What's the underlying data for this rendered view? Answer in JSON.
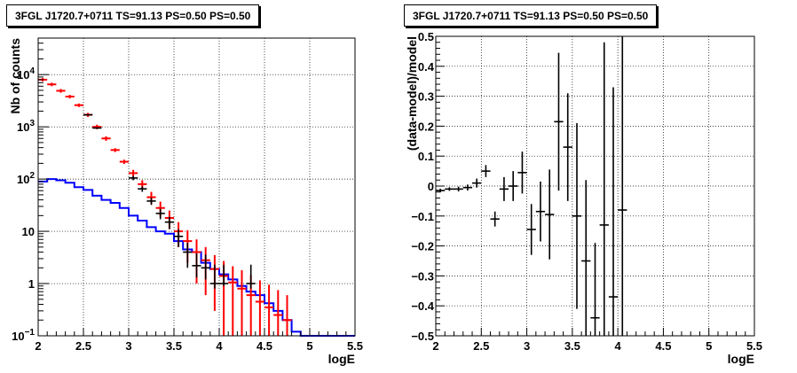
{
  "chart_data": [
    {
      "type": "step-histogram-with-error-bars",
      "title": "3FGL J1720.7+0711 TS=91.13 PS=0.50 PS=0.50",
      "xlabel": "logE",
      "ylabel": "Nb of counts",
      "xlim": [
        2,
        5.5
      ],
      "ylim": [
        0.1,
        50000
      ],
      "yscale": "log",
      "grid": true,
      "x_ticks": [
        "2",
        "2.5",
        "3",
        "3.5",
        "4",
        "4.5",
        "5",
        "5.5"
      ],
      "y_ticks": [
        {
          "value": 0.1,
          "base": "10",
          "exp": "−1"
        },
        {
          "value": 1,
          "base": "1",
          "exp": ""
        },
        {
          "value": 10,
          "base": "10",
          "exp": ""
        },
        {
          "value": 100,
          "base": "10",
          "exp": "2"
        },
        {
          "value": 1000,
          "base": "10",
          "exp": "3"
        },
        {
          "value": 10000,
          "base": "10",
          "exp": "4"
        }
      ],
      "colors": {
        "data": "#000000",
        "model": "#ff0000",
        "source": "#0000ff"
      },
      "bin_width": 0.1,
      "series": [
        {
          "role": "source",
          "x": [
            2.0,
            2.1,
            2.2,
            2.3,
            2.4,
            2.5,
            2.6,
            2.7,
            2.8,
            2.9,
            3.0,
            3.1,
            3.2,
            3.3,
            3.4,
            3.5,
            3.6,
            3.7,
            3.8,
            3.9,
            4.0,
            4.1,
            4.2,
            4.3,
            4.4,
            4.5,
            4.6,
            4.7,
            4.8,
            4.9,
            5.0,
            5.1,
            5.2,
            5.3,
            5.4
          ],
          "values": [
            90,
            100,
            95,
            85,
            70,
            62,
            48,
            40,
            35,
            28,
            20,
            16,
            12,
            10,
            9,
            6.5,
            4.5,
            4,
            2.5,
            1.9,
            1.5,
            1.2,
            0.9,
            0.7,
            0.6,
            0.42,
            0.3,
            0.2,
            0.12,
            0.1,
            0.1,
            0.1,
            0.1,
            0.1,
            0.1
          ]
        },
        {
          "role": "model",
          "x": [
            2.05,
            2.15,
            2.25,
            2.35,
            2.45,
            2.55,
            2.65,
            2.75,
            2.85,
            2.95,
            3.05,
            3.15,
            3.25,
            3.35,
            3.45,
            3.55,
            3.65,
            3.75,
            3.85,
            3.95,
            4.05,
            4.15,
            4.25,
            4.35,
            4.45,
            4.55,
            4.65,
            4.75
          ],
          "values": [
            8000,
            6500,
            4900,
            3800,
            2600,
            1700,
            1000,
            600,
            360,
            215,
            130,
            80,
            45,
            28,
            18,
            10,
            6.5,
            4,
            2.8,
            1.9,
            1.4,
            1.05,
            0.8,
            0.6,
            0.45,
            0.35,
            0.25,
            0.2
          ],
          "error": [
            600,
            500,
            400,
            300,
            200,
            150,
            100,
            60,
            30,
            20,
            20,
            15,
            12,
            9,
            7,
            5,
            4,
            3,
            2.2,
            1.6,
            1.3,
            1.1,
            1.0,
            0.85,
            0.7,
            0.6,
            0.5,
            0.4
          ]
        },
        {
          "role": "data",
          "x": [
            2.55,
            2.65,
            3.05,
            3.15,
            3.25,
            3.35,
            3.45,
            3.55,
            3.65,
            3.75,
            3.85,
            3.95,
            4.05,
            4.35
          ],
          "values": [
            1700,
            950,
            105,
            65,
            38,
            22,
            15,
            8,
            4,
            2.2,
            2,
            1,
            1,
            1
          ],
          "error_low": [
            1658,
            920,
            95,
            57,
            32,
            17,
            11,
            5,
            2,
            1.3,
            1.2,
            0.8,
            0.9,
            0.8
          ],
          "error_high": [
            1742,
            980,
            115,
            73,
            44,
            27,
            19,
            11,
            6,
            3.8,
            3.6,
            2.3,
            2.3,
            2.3
          ]
        }
      ]
    },
    {
      "type": "scatter-with-error-bars",
      "title": "3FGL J1720.7+0711 TS=91.13 PS=0.50 PS=0.50",
      "xlabel": "logE",
      "ylabel": "(data-model)/model",
      "xlim": [
        2,
        5.5
      ],
      "ylim": [
        -0.5,
        0.5
      ],
      "grid": true,
      "x_ticks": [
        "2",
        "2.5",
        "3",
        "3.5",
        "4",
        "4.5",
        "5",
        "5.5"
      ],
      "y_ticks": [
        "−0.5",
        "−0.4",
        "−0.3",
        "−0.2",
        "−0.1",
        "0",
        "0.1",
        "0.2",
        "0.3",
        "0.4",
        "0.5"
      ],
      "colors": {
        "points": "#000000"
      },
      "bin_width": 0.1,
      "points": [
        {
          "x": 2.05,
          "y": -0.015,
          "err": 0.006
        },
        {
          "x": 2.15,
          "y": -0.01,
          "err": 0.006
        },
        {
          "x": 2.25,
          "y": -0.01,
          "err": 0.008
        },
        {
          "x": 2.35,
          "y": -0.005,
          "err": 0.01
        },
        {
          "x": 2.45,
          "y": 0.01,
          "err": 0.015
        },
        {
          "x": 2.55,
          "y": 0.05,
          "err": 0.02
        },
        {
          "x": 2.65,
          "y": -0.11,
          "err": 0.025
        },
        {
          "x": 2.75,
          "y": -0.01,
          "err": 0.04
        },
        {
          "x": 2.85,
          "y": 0.0,
          "err": 0.05
        },
        {
          "x": 2.95,
          "y": 0.045,
          "err": 0.07
        },
        {
          "x": 3.05,
          "y": -0.145,
          "err": 0.085
        },
        {
          "x": 3.15,
          "y": -0.085,
          "err": 0.1
        },
        {
          "x": 3.25,
          "y": -0.095,
          "err": 0.15
        },
        {
          "x": 3.35,
          "y": 0.215,
          "err": 0.23
        },
        {
          "x": 3.45,
          "y": 0.13,
          "err": 0.18
        },
        {
          "x": 3.55,
          "y": -0.1,
          "err": 0.31
        },
        {
          "x": 3.65,
          "y": -0.25,
          "err": 0.27
        },
        {
          "x": 3.75,
          "y": -0.44,
          "err": 0.25
        },
        {
          "x": 3.85,
          "y": -0.13,
          "err": 0.61
        },
        {
          "x": 3.95,
          "y": -0.37,
          "err": 0.7
        },
        {
          "x": 4.05,
          "y": -0.08,
          "err": 0.75
        }
      ]
    }
  ]
}
